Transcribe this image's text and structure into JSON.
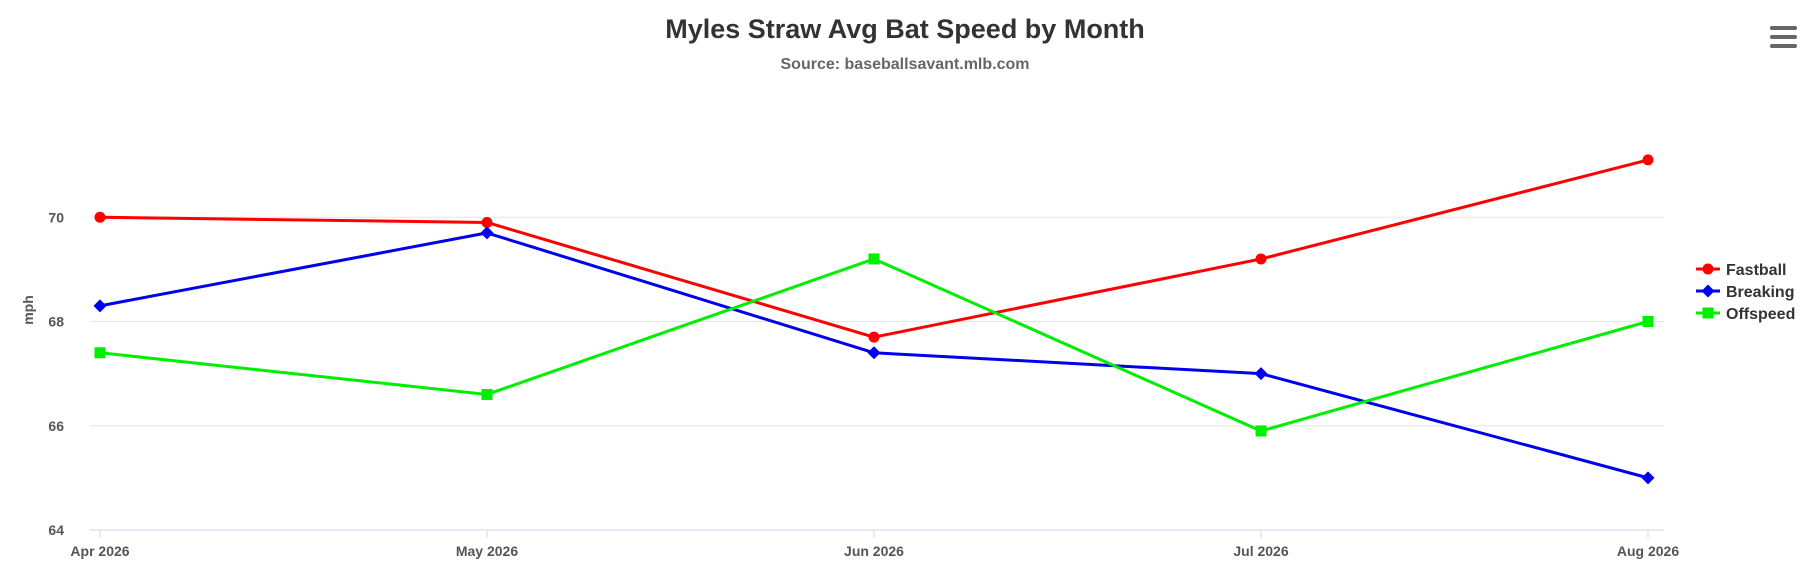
{
  "chart_data": {
    "type": "line",
    "title": "Myles Straw Avg Bat Speed by Month",
    "subtitle": "Source: baseballsavant.mlb.com",
    "xlabel": "",
    "ylabel": "mph",
    "categories": [
      "Apr 2026",
      "May 2026",
      "Jun 2026",
      "Jul 2026",
      "Aug 2026"
    ],
    "ylim": [
      64,
      72
    ],
    "yticks": [
      64,
      66,
      68,
      70
    ],
    "grid": true,
    "legend_position": "right",
    "series": [
      {
        "name": "Fastball",
        "color": "#ff0000",
        "marker": "circle",
        "values": [
          70.0,
          69.9,
          67.7,
          69.2,
          71.1
        ]
      },
      {
        "name": "Breaking",
        "color": "#0000ee",
        "marker": "diamond",
        "values": [
          68.3,
          69.7,
          67.4,
          67.0,
          65.0
        ]
      },
      {
        "name": "Offspeed",
        "color": "#00ee00",
        "marker": "square",
        "values": [
          67.4,
          66.6,
          69.2,
          65.9,
          68.0
        ]
      }
    ]
  },
  "menu": {
    "icon": "hamburger-menu-icon"
  }
}
